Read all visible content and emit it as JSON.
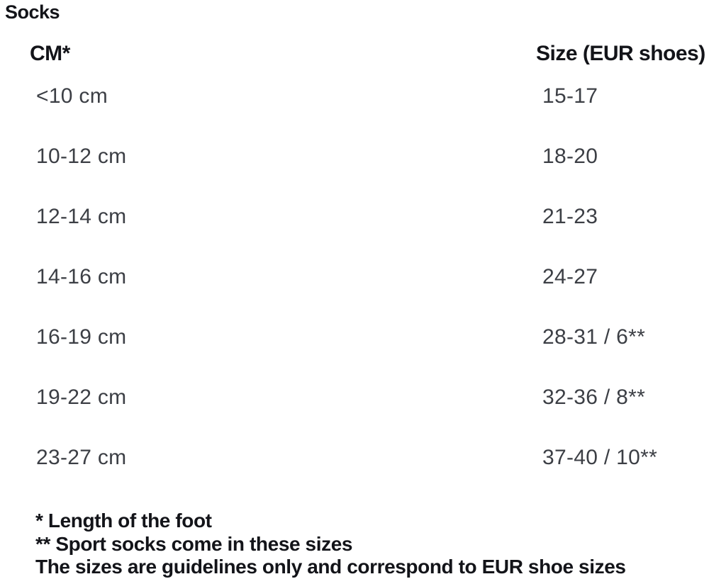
{
  "page": {
    "title": "Socks"
  },
  "table": {
    "headers": {
      "cm": "CM*",
      "size": "Size (EUR shoes)"
    },
    "rows": [
      {
        "cm": "<10 cm",
        "size": "15-17"
      },
      {
        "cm": "10-12 cm",
        "size": "18-20"
      },
      {
        "cm": "12-14 cm",
        "size": "21-23"
      },
      {
        "cm": "14-16 cm",
        "size": "24-27"
      },
      {
        "cm": "16-19 cm",
        "size": "28-31 / 6**"
      },
      {
        "cm": "19-22 cm",
        "size": "32-36 / 8**"
      },
      {
        "cm": "23-27 cm",
        "size": "37-40 / 10**"
      }
    ]
  },
  "footnotes": {
    "foot_length": "* Length of the foot",
    "sport_socks": "** Sport socks come in these sizes",
    "guidelines": "The sizes are guidelines only and correspond to EUR shoe sizes"
  },
  "colors": {
    "background": "#ffffff",
    "heading_text": "#131419",
    "row_text": "#3c3f45"
  }
}
